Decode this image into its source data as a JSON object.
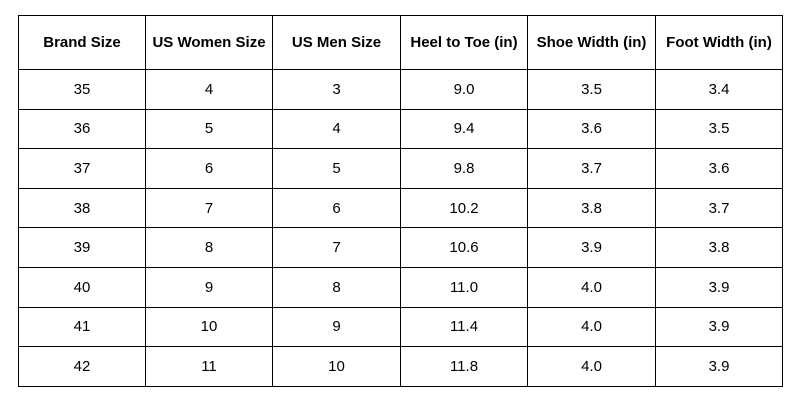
{
  "table": {
    "headers": [
      "Brand Size",
      "US Women Size",
      "US Men Size",
      "Heel to Toe (in)",
      "Shoe Width (in)",
      "Foot Width (in)"
    ],
    "rows": [
      [
        "35",
        "4",
        "3",
        "9.0",
        "3.5",
        "3.4"
      ],
      [
        "36",
        "5",
        "4",
        "9.4",
        "3.6",
        "3.5"
      ],
      [
        "37",
        "6",
        "5",
        "9.8",
        "3.7",
        "3.6"
      ],
      [
        "38",
        "7",
        "6",
        "10.2",
        "3.8",
        "3.7"
      ],
      [
        "39",
        "8",
        "7",
        "10.6",
        "3.9",
        "3.8"
      ],
      [
        "40",
        "9",
        "8",
        "11.0",
        "4.0",
        "3.9"
      ],
      [
        "41",
        "10",
        "9",
        "11.4",
        "4.0",
        "3.9"
      ],
      [
        "42",
        "11",
        "10",
        "11.8",
        "4.0",
        "3.9"
      ]
    ]
  }
}
